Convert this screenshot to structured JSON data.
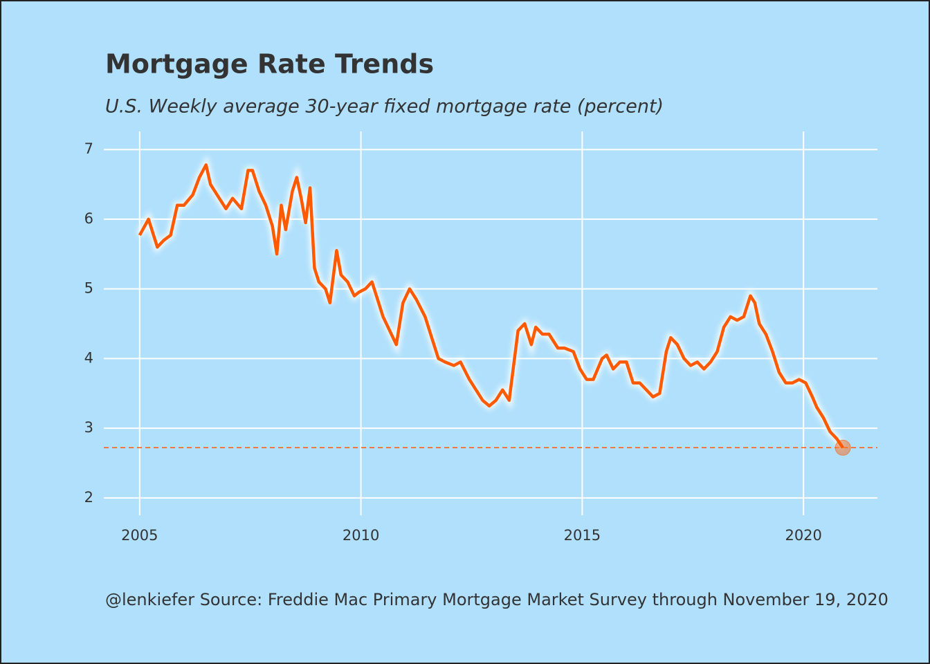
{
  "chart_data": {
    "type": "line",
    "title": "Mortgage Rate Trends",
    "subtitle": "U.S. Weekly average 30-year fixed mortgage rate (percent)",
    "caption": "@lenkiefer Source: Freddie Mac Primary Mortgage Market Survey through November 19, 2020",
    "x": [
      2005.0,
      2005.2,
      2005.4,
      2005.55,
      2005.7,
      2005.85,
      2006.0,
      2006.2,
      2006.35,
      2006.5,
      2006.6,
      2006.8,
      2006.95,
      2007.1,
      2007.3,
      2007.45,
      2007.55,
      2007.7,
      2007.85,
      2008.0,
      2008.1,
      2008.2,
      2008.3,
      2008.45,
      2008.55,
      2008.65,
      2008.75,
      2008.85,
      2008.95,
      2009.05,
      2009.2,
      2009.3,
      2009.45,
      2009.55,
      2009.7,
      2009.85,
      2009.95,
      2010.1,
      2010.25,
      2010.35,
      2010.5,
      2010.65,
      2010.8,
      2010.95,
      2011.1,
      2011.25,
      2011.45,
      2011.6,
      2011.75,
      2011.9,
      2012.1,
      2012.25,
      2012.45,
      2012.6,
      2012.75,
      2012.9,
      2013.05,
      2013.2,
      2013.35,
      2013.45,
      2013.55,
      2013.7,
      2013.85,
      2013.95,
      2014.1,
      2014.25,
      2014.45,
      2014.6,
      2014.8,
      2014.95,
      2015.1,
      2015.25,
      2015.45,
      2015.55,
      2015.7,
      2015.85,
      2016.0,
      2016.15,
      2016.3,
      2016.45,
      2016.6,
      2016.75,
      2016.9,
      2017.0,
      2017.15,
      2017.3,
      2017.45,
      2017.6,
      2017.75,
      2017.9,
      2018.05,
      2018.2,
      2018.35,
      2018.5,
      2018.65,
      2018.8,
      2018.9,
      2019.0,
      2019.15,
      2019.3,
      2019.45,
      2019.6,
      2019.75,
      2019.9,
      2020.05,
      2020.2,
      2020.3,
      2020.45,
      2020.6,
      2020.75,
      2020.89
    ],
    "series": [
      {
        "color": "#ff5a00",
        "values": [
          5.77,
          6.0,
          5.6,
          5.7,
          5.77,
          6.2,
          6.2,
          6.35,
          6.6,
          6.78,
          6.5,
          6.3,
          6.15,
          6.3,
          6.15,
          6.7,
          6.7,
          6.4,
          6.2,
          5.9,
          5.5,
          6.2,
          5.85,
          6.4,
          6.6,
          6.3,
          5.95,
          6.45,
          5.3,
          5.1,
          5.0,
          4.8,
          5.55,
          5.2,
          5.1,
          4.9,
          4.95,
          5.0,
          5.1,
          4.9,
          4.6,
          4.4,
          4.2,
          4.8,
          5.0,
          4.85,
          4.6,
          4.3,
          4.0,
          3.95,
          3.9,
          3.95,
          3.7,
          3.55,
          3.4,
          3.32,
          3.4,
          3.55,
          3.4,
          3.9,
          4.4,
          4.5,
          4.2,
          4.45,
          4.35,
          4.35,
          4.15,
          4.15,
          4.1,
          3.85,
          3.7,
          3.7,
          4.0,
          4.05,
          3.85,
          3.95,
          3.95,
          3.65,
          3.65,
          3.55,
          3.45,
          3.5,
          4.1,
          4.3,
          4.2,
          4.0,
          3.9,
          3.95,
          3.85,
          3.95,
          4.1,
          4.45,
          4.6,
          4.55,
          4.6,
          4.9,
          4.8,
          4.5,
          4.35,
          4.1,
          3.8,
          3.65,
          3.65,
          3.7,
          3.65,
          3.45,
          3.3,
          3.15,
          2.95,
          2.85,
          2.72
        ]
      }
    ],
    "reference_line": 2.72,
    "reference_color": "#ff5a00",
    "xlim": [
      2004.19,
      2021.67
    ],
    "ylim": [
      1.75,
      7.26
    ],
    "xticks": [
      2005,
      2010,
      2015,
      2020
    ],
    "yticks": [
      2,
      3,
      4,
      5,
      6,
      7
    ],
    "grid": true
  }
}
